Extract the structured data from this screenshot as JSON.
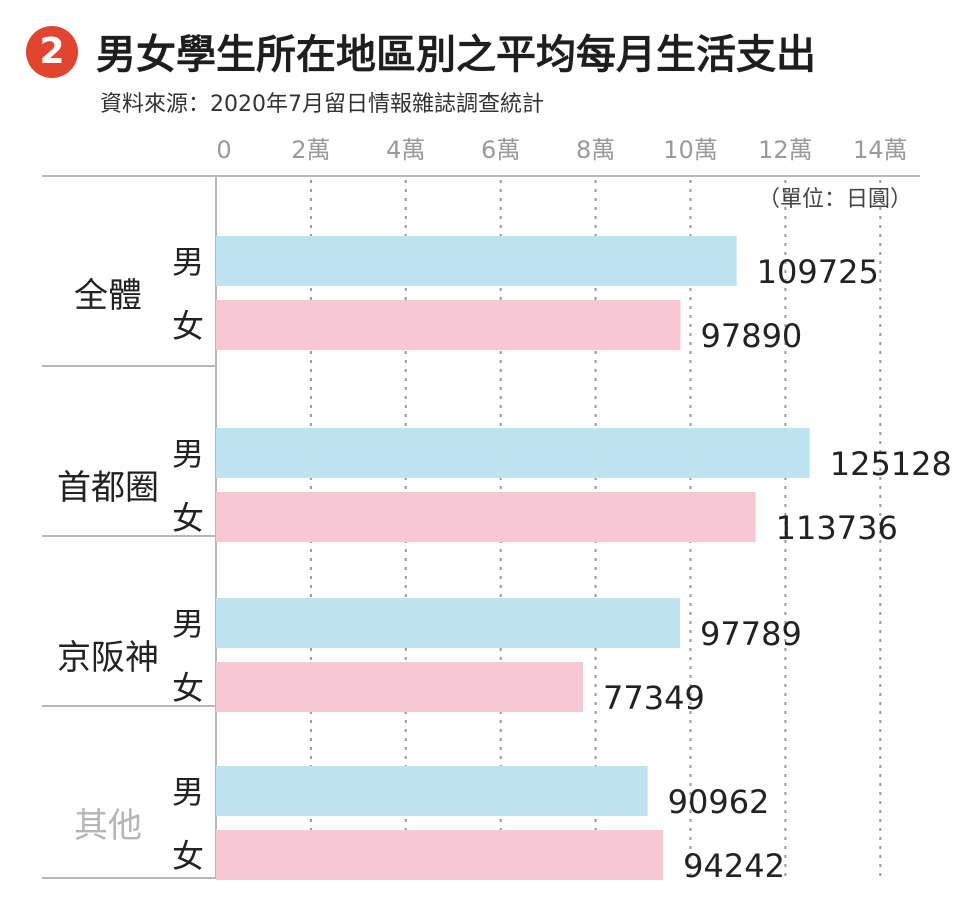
{
  "header": {
    "badge": "2",
    "title": "男女學生所在地區別之平均每月生活支出",
    "source": "資料來源：2020年7月留日情報雜誌調查統計"
  },
  "chart_data": {
    "type": "bar",
    "orientation": "horizontal",
    "unit_label": "（單位：日圓）",
    "x_ticks": [
      "0",
      "2萬",
      "4萬",
      "6萬",
      "8萬",
      "10萬",
      "12萬",
      "14萬"
    ],
    "xlim": [
      0,
      140000
    ],
    "grid": true,
    "groups": [
      {
        "name": "全體",
        "bars": [
          {
            "label": "男",
            "value": 109725
          },
          {
            "label": "女",
            "value": 97890
          }
        ]
      },
      {
        "name": "首都圈",
        "bars": [
          {
            "label": "男",
            "value": 125128
          },
          {
            "label": "女",
            "value": 113736
          }
        ]
      },
      {
        "name": "京阪神",
        "bars": [
          {
            "label": "男",
            "value": 97789
          },
          {
            "label": "女",
            "value": 77349
          }
        ]
      },
      {
        "name": "其他",
        "bars": [
          {
            "label": "男",
            "value": 90962
          },
          {
            "label": "女",
            "value": 94242
          }
        ]
      }
    ],
    "colors": {
      "male": "#bfe3f1",
      "female": "#f7c8d3",
      "grid": "#9a9a9a",
      "divider": "#b8b8b8",
      "group_label": "#222222",
      "group_label_muted": "#b5b5b5",
      "badge": "#e2452f"
    }
  }
}
